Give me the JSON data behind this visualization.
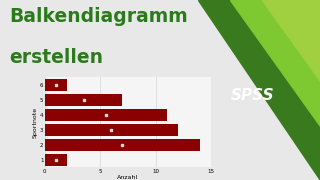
{
  "title_line1": "Balkendiagramm",
  "title_line2": "erstellen",
  "title_color": "#2d7a1e",
  "title_fontsize": 13.5,
  "bar_values": [
    2,
    14,
    12,
    11,
    7,
    2
  ],
  "bar_labels": [
    "1",
    "2",
    "3",
    "4",
    "5",
    "6"
  ],
  "bar_color": "#8b0000",
  "xlabel": "Anzahl",
  "ylabel": "Sportnote",
  "xlim": [
    0,
    15
  ],
  "background_color": "#e8e8e8",
  "chart_bg": "#f5f5f5",
  "grid_color": "#cccccc",
  "spss_bg": "#c13060",
  "spss_text": "#ffffff",
  "green_dark": "#3a7a1e",
  "green_light": "#7ec832",
  "ylabel_fontsize": 4.5,
  "xlabel_fontsize": 4.5,
  "tick_fontsize": 4.0,
  "dot_color": "#dddddd"
}
